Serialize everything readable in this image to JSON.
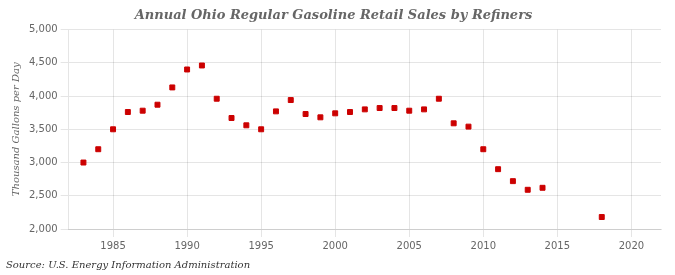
{
  "chart_data": {
    "type": "scatter",
    "title": "Annual Ohio Regular Gasoline Retail Sales by Refiners",
    "ylabel": "Thousand Gallons per Day",
    "annotation": "Source: U.S. Energy Information Administration",
    "x": [
      1983,
      1984,
      1985,
      1986,
      1987,
      1988,
      1989,
      1990,
      1991,
      1992,
      1993,
      1994,
      1995,
      1996,
      1997,
      1998,
      1999,
      2000,
      2001,
      2002,
      2003,
      2004,
      2005,
      2006,
      2007,
      2008,
      2009,
      2010,
      2011,
      2012,
      2013,
      2014,
      2018
    ],
    "values": [
      3000,
      3200,
      3500,
      3760,
      3780,
      3870,
      4130,
      4400,
      4460,
      3960,
      3670,
      3560,
      3500,
      3770,
      3940,
      3730,
      3680,
      3740,
      3760,
      3800,
      3820,
      3820,
      3780,
      3800,
      3960,
      3590,
      3540,
      3200,
      2900,
      2720,
      2590,
      2620,
      2180
    ],
    "color": "#cc0000",
    "marker": "square",
    "xlim": [
      1982,
      2022
    ],
    "ylim": [
      2000,
      5000
    ],
    "xticks": [
      1985,
      1990,
      1995,
      2000,
      2005,
      2010,
      2015,
      2020
    ],
    "yticks": [
      {
        "value": 2000,
        "label": "2,000"
      },
      {
        "value": 2500,
        "label": "2,500"
      },
      {
        "value": 3000,
        "label": "3,000"
      },
      {
        "value": 3500,
        "label": "3,500"
      },
      {
        "value": 4000,
        "label": "4,000"
      },
      {
        "value": 4500,
        "label": "4,500"
      },
      {
        "value": 5000,
        "label": "5,000"
      }
    ],
    "grid": true
  }
}
